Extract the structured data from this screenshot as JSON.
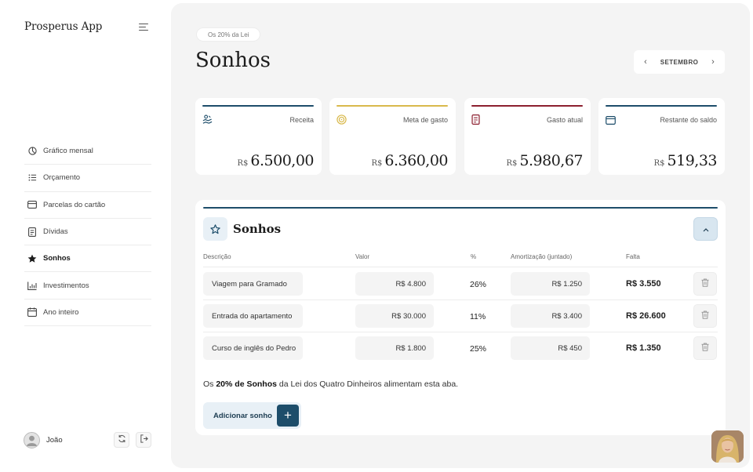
{
  "app": {
    "name": "Prosperus App"
  },
  "sidebar": {
    "items": [
      {
        "label": "Gráfico mensal",
        "icon": "pie-chart-icon",
        "active": false
      },
      {
        "label": "Orçamento",
        "icon": "list-icon",
        "active": false
      },
      {
        "label": "Parcelas do cartão",
        "icon": "credit-card-icon",
        "active": false
      },
      {
        "label": "Dívidas",
        "icon": "receipt-icon",
        "active": false
      },
      {
        "label": "Sonhos",
        "icon": "star-icon",
        "active": true
      },
      {
        "label": "Investimentos",
        "icon": "bar-chart-icon",
        "active": false
      },
      {
        "label": "Ano inteiro",
        "icon": "calendar-icon",
        "active": false
      }
    ],
    "user": {
      "name": "João"
    }
  },
  "header": {
    "pill": "Os 20% da Lei",
    "title": "Sonhos",
    "month": "SETEMBRO"
  },
  "cards": [
    {
      "title": "Receita",
      "currency": "R$",
      "value": "6.500,00",
      "color": "#1d4d6a",
      "icon": "money-hand-icon"
    },
    {
      "title": "Meta de gasto",
      "currency": "R$",
      "value": "6.360,00",
      "color": "#d9b94c",
      "icon": "target-icon"
    },
    {
      "title": "Gasto atual",
      "currency": "R$",
      "value": "5.980,67",
      "color": "#8c1f2f",
      "icon": "receipt-icon"
    },
    {
      "title": "Restante do saldo",
      "currency": "R$",
      "value": "519,33",
      "color": "#1d4d6a",
      "icon": "wallet-icon"
    }
  ],
  "panel": {
    "title": "Sonhos",
    "columns": [
      "Descrição",
      "Valor",
      "%",
      "Amortização (juntado)",
      "Falta"
    ],
    "rows": [
      {
        "descricao": "Viagem para Gramado",
        "valor": "R$ 4.800",
        "pct": "26%",
        "amortizacao": "R$ 1.250",
        "falta": "R$ 3.550"
      },
      {
        "descricao": "Entrada do apartamento",
        "valor": "R$ 30.000",
        "pct": "11%",
        "amortizacao": "R$ 3.400",
        "falta": "R$ 26.600"
      },
      {
        "descricao": "Curso de inglês do Pedro",
        "valor": "R$ 1.800",
        "pct": "25%",
        "amortizacao": "R$ 450",
        "falta": "R$ 1.350"
      }
    ],
    "note": {
      "before": "Os ",
      "bold": "20% de Sonhos",
      "after": " da Lei dos Quatro Dinheiros alimentam esta aba."
    },
    "add_label": "Adicionar sonho",
    "add_symbol": "+"
  }
}
